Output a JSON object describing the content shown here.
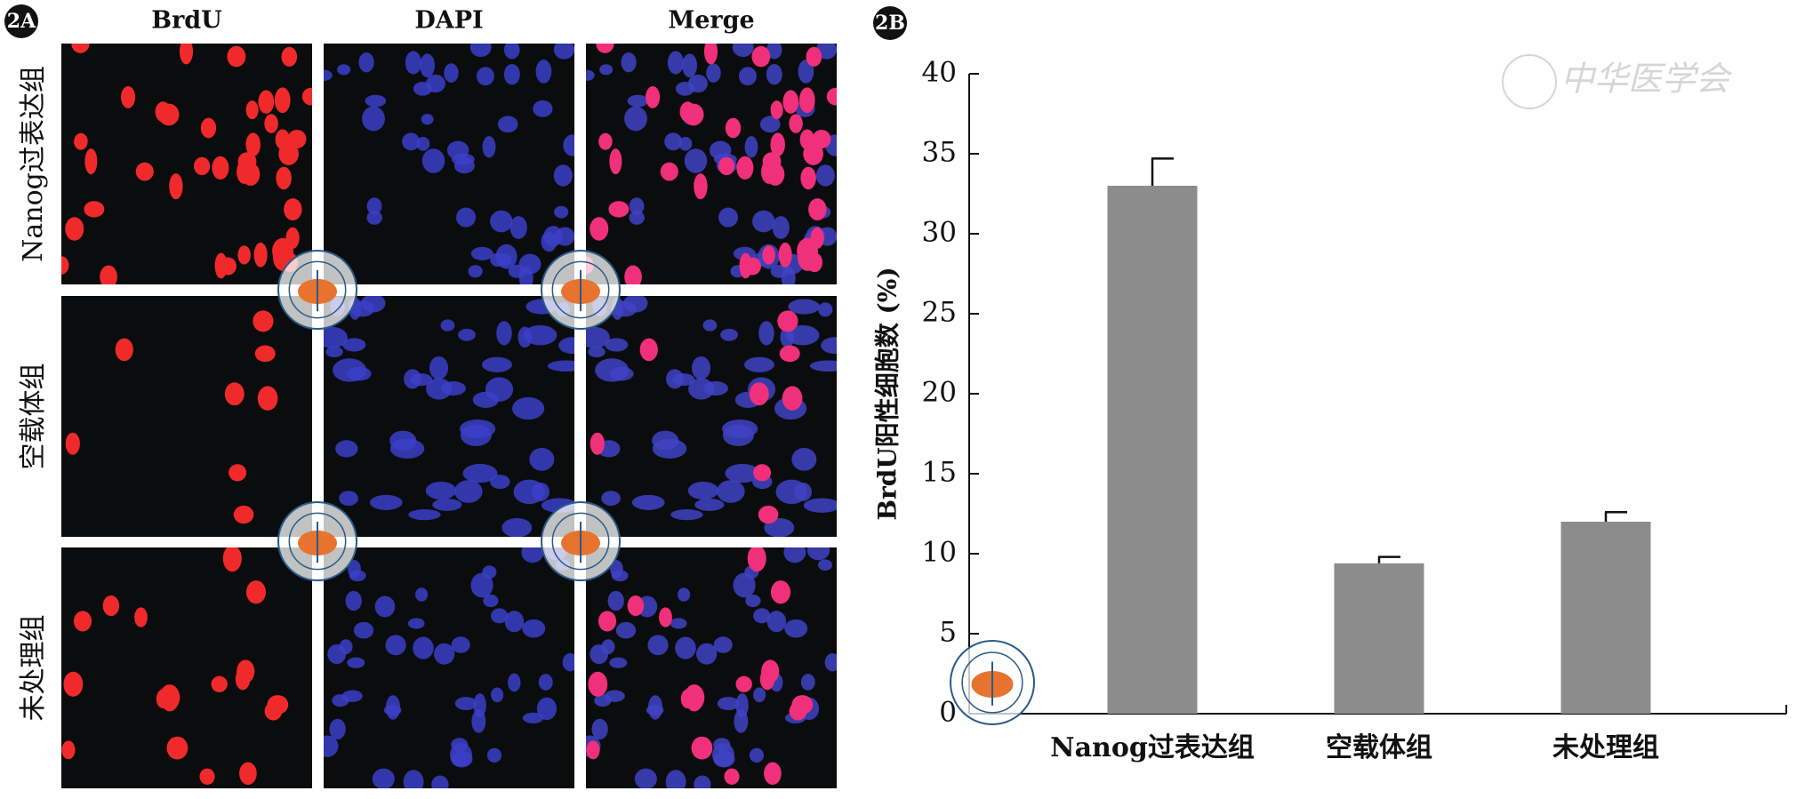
{
  "panel_a": {
    "label": "2A",
    "columns": [
      "BrdU",
      "DAPI",
      "Merge"
    ],
    "rows": [
      "Nanog过表达组",
      "空载体组",
      "未处理组"
    ]
  },
  "watermark": "中华医学会",
  "chart_data": {
    "type": "bar",
    "panel_label": "2B",
    "y_label": "BrdU阳性细胞数 (%)",
    "categories": [
      "Nanog过表达组",
      "空载体组",
      "未处理组"
    ],
    "series": [
      {
        "name": "BrdU",
        "color": "#8c8c8c",
        "values": [
          33.0,
          9.4,
          12.0
        ],
        "errors": [
          1.7,
          0.4,
          0.6
        ]
      }
    ],
    "ylim": [
      0,
      40
    ],
    "yticks": [
      0,
      5,
      10,
      15,
      20,
      25,
      30,
      35,
      40
    ],
    "grid": false
  }
}
